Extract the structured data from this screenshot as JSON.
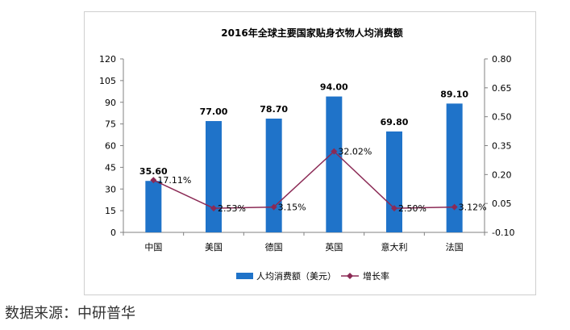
{
  "chart_data": {
    "type": "bar",
    "title": "2016年全球主要国家贴身衣物人均消费额",
    "categories": [
      "中国",
      "美国",
      "德国",
      "英国",
      "意大利",
      "法国"
    ],
    "series": [
      {
        "name": "人均消费额（美元）",
        "type": "bar",
        "axis": "left",
        "values": [
          35.6,
          77.0,
          78.7,
          94.0,
          69.8,
          89.1
        ],
        "labels": [
          "35.60",
          "77.00",
          "78.70",
          "94.00",
          "69.80",
          "89.10"
        ]
      },
      {
        "name": "增长率",
        "type": "line",
        "axis": "right",
        "values": [
          0.1711,
          0.0253,
          0.0315,
          0.3202,
          0.025,
          0.0312
        ],
        "labels": [
          "17.11%",
          "2.53%",
          "3.15%",
          "32.02%",
          "2.50%",
          "3.12%"
        ]
      }
    ],
    "ylim": [
      0,
      120
    ],
    "yticks": [
      "0",
      "15",
      "30",
      "45",
      "60",
      "75",
      "90",
      "105",
      "120"
    ],
    "y2lim": [
      -0.1,
      0.8
    ],
    "y2ticks": [
      "-0.10",
      "0.05",
      "0.20",
      "0.35",
      "0.50",
      "0.65",
      "0.80"
    ],
    "grid": false,
    "legend_position": "bottom",
    "colors": {
      "bar": "#1f73c9",
      "line": "#8b2a55"
    }
  },
  "source": "数据来源：中研普华"
}
